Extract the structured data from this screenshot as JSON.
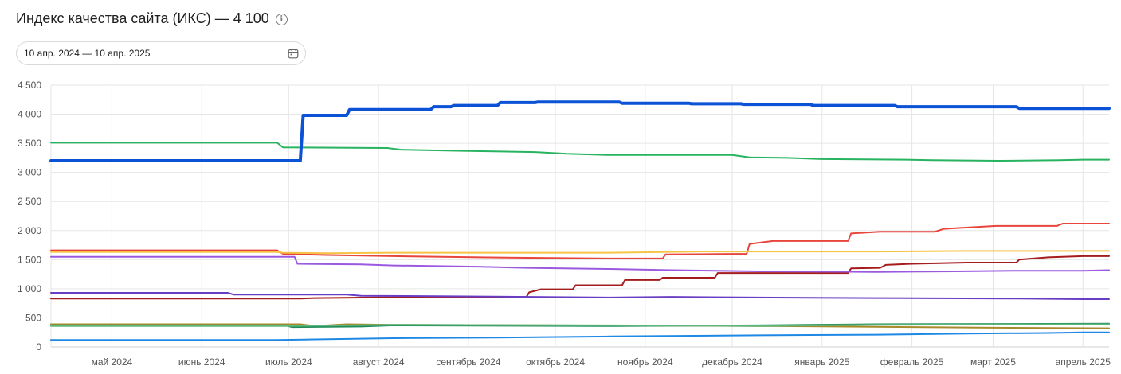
{
  "header": {
    "title": "Индекс качества сайта (ИКС) — 4 100",
    "info_icon": "info-icon"
  },
  "date_range": {
    "value": "10 апр. 2024 — 10 апр. 2025",
    "icon": "calendar-icon"
  },
  "chart_data": {
    "type": "line",
    "title": "",
    "xlabel": "",
    "ylabel": "",
    "xlim": [
      "2024-04-10",
      "2025-04-10"
    ],
    "ylim": [
      0,
      4500
    ],
    "yticks": [
      0,
      500,
      1000,
      1500,
      2000,
      2500,
      3000,
      3500,
      4000,
      4500
    ],
    "ytick_labels": [
      "0",
      "500",
      "1 000",
      "1 500",
      "2 000",
      "2 500",
      "3 000",
      "3 500",
      "4 000",
      "4 500"
    ],
    "xticks": [
      {
        "date": "2024-05-01",
        "label": "май 2024"
      },
      {
        "date": "2024-06-01",
        "label": "июнь 2024"
      },
      {
        "date": "2024-07-01",
        "label": "июль 2024"
      },
      {
        "date": "2024-08-01",
        "label": "август 2024"
      },
      {
        "date": "2024-09-01",
        "label": "сентябрь 2024"
      },
      {
        "date": "2024-10-01",
        "label": "октябрь 2024"
      },
      {
        "date": "2024-11-01",
        "label": "ноябрь 2024"
      },
      {
        "date": "2024-12-01",
        "label": "декабрь 2024"
      },
      {
        "date": "2025-01-01",
        "label": "январь 2025"
      },
      {
        "date": "2025-02-01",
        "label": "февраль 2025"
      },
      {
        "date": "2025-03-01",
        "label": "март 2025"
      },
      {
        "date": "2025-04-01",
        "label": "апрель 2025"
      }
    ],
    "grid": true,
    "legend": "none",
    "series": [
      {
        "color": "#0b52d6",
        "highlight": true,
        "points": [
          [
            "2024-04-10",
            3200
          ],
          [
            "2024-07-05",
            3200
          ],
          [
            "2024-07-06",
            3980
          ],
          [
            "2024-07-21",
            3980
          ],
          [
            "2024-07-22",
            4080
          ],
          [
            "2024-08-19",
            4080
          ],
          [
            "2024-08-20",
            4130
          ],
          [
            "2024-08-26",
            4130
          ],
          [
            "2024-08-27",
            4150
          ],
          [
            "2024-09-11",
            4150
          ],
          [
            "2024-09-12",
            4200
          ],
          [
            "2024-09-24",
            4200
          ],
          [
            "2024-09-25",
            4210
          ],
          [
            "2024-10-23",
            4210
          ],
          [
            "2024-10-24",
            4190
          ],
          [
            "2024-11-16",
            4190
          ],
          [
            "2024-11-17",
            4180
          ],
          [
            "2024-12-04",
            4180
          ],
          [
            "2024-12-05",
            4170
          ],
          [
            "2024-12-28",
            4170
          ],
          [
            "2024-12-29",
            4150
          ],
          [
            "2025-01-26",
            4150
          ],
          [
            "2025-01-27",
            4130
          ],
          [
            "2025-03-09",
            4130
          ],
          [
            "2025-03-10",
            4100
          ],
          [
            "2025-04-10",
            4100
          ]
        ]
      },
      {
        "color": "#27b35f",
        "points": [
          [
            "2024-04-10",
            3510
          ],
          [
            "2024-06-27",
            3510
          ],
          [
            "2024-06-29",
            3430
          ],
          [
            "2024-08-04",
            3420
          ],
          [
            "2024-08-09",
            3390
          ],
          [
            "2024-08-30",
            3370
          ],
          [
            "2024-09-24",
            3350
          ],
          [
            "2024-10-05",
            3320
          ],
          [
            "2024-10-19",
            3300
          ],
          [
            "2024-12-01",
            3300
          ],
          [
            "2024-12-07",
            3260
          ],
          [
            "2024-12-20",
            3250
          ],
          [
            "2025-01-01",
            3230
          ],
          [
            "2025-01-30",
            3220
          ],
          [
            "2025-02-08",
            3210
          ],
          [
            "2025-03-03",
            3200
          ],
          [
            "2025-03-24",
            3210
          ],
          [
            "2025-04-01",
            3220
          ],
          [
            "2025-04-10",
            3220
          ]
        ]
      },
      {
        "color": "#e8453c",
        "points": [
          [
            "2024-04-10",
            1660
          ],
          [
            "2024-06-27",
            1660
          ],
          [
            "2024-06-29",
            1600
          ],
          [
            "2024-07-14",
            1580
          ],
          [
            "2024-08-06",
            1560
          ],
          [
            "2024-09-05",
            1540
          ],
          [
            "2024-09-25",
            1530
          ],
          [
            "2024-10-20",
            1520
          ],
          [
            "2024-11-07",
            1520
          ],
          [
            "2024-11-08",
            1590
          ],
          [
            "2024-12-06",
            1600
          ],
          [
            "2024-12-07",
            1770
          ],
          [
            "2024-12-15",
            1820
          ],
          [
            "2025-01-10",
            1820
          ],
          [
            "2025-01-11",
            1950
          ],
          [
            "2025-01-21",
            1980
          ],
          [
            "2025-02-09",
            1980
          ],
          [
            "2025-02-12",
            2030
          ],
          [
            "2025-02-19",
            2050
          ],
          [
            "2025-03-02",
            2080
          ],
          [
            "2025-03-23",
            2080
          ],
          [
            "2025-03-25",
            2120
          ],
          [
            "2025-04-10",
            2120
          ]
        ]
      },
      {
        "color": "#f6c445",
        "points": [
          [
            "2024-04-10",
            1630
          ],
          [
            "2024-06-27",
            1630
          ],
          [
            "2024-06-29",
            1620
          ],
          [
            "2024-07-14",
            1610
          ],
          [
            "2024-08-06",
            1620
          ],
          [
            "2024-10-20",
            1620
          ],
          [
            "2024-11-20",
            1640
          ],
          [
            "2024-12-20",
            1640
          ],
          [
            "2025-01-20",
            1640
          ],
          [
            "2025-02-20",
            1650
          ],
          [
            "2025-04-10",
            1650
          ]
        ]
      },
      {
        "color": "#a51c1c",
        "points": [
          [
            "2024-04-10",
            830
          ],
          [
            "2024-07-05",
            830
          ],
          [
            "2024-07-10",
            840
          ],
          [
            "2024-07-30",
            850
          ],
          [
            "2024-09-10",
            860
          ],
          [
            "2024-09-21",
            860
          ],
          [
            "2024-09-22",
            940
          ],
          [
            "2024-09-26",
            990
          ],
          [
            "2024-10-07",
            990
          ],
          [
            "2024-10-08",
            1060
          ],
          [
            "2024-10-24",
            1060
          ],
          [
            "2024-10-25",
            1150
          ],
          [
            "2024-11-06",
            1150
          ],
          [
            "2024-11-07",
            1190
          ],
          [
            "2024-11-25",
            1190
          ],
          [
            "2024-11-26",
            1270
          ],
          [
            "2025-01-10",
            1270
          ],
          [
            "2025-01-11",
            1350
          ],
          [
            "2025-01-21",
            1360
          ],
          [
            "2025-01-23",
            1410
          ],
          [
            "2025-02-01",
            1430
          ],
          [
            "2025-02-20",
            1450
          ],
          [
            "2025-03-09",
            1450
          ],
          [
            "2025-03-10",
            1500
          ],
          [
            "2025-03-20",
            1540
          ],
          [
            "2025-04-01",
            1560
          ],
          [
            "2025-04-10",
            1560
          ]
        ]
      },
      {
        "color": "#9b59e0",
        "points": [
          [
            "2024-04-10",
            1550
          ],
          [
            "2024-07-03",
            1550
          ],
          [
            "2024-07-04",
            1430
          ],
          [
            "2024-07-26",
            1420
          ],
          [
            "2024-08-06",
            1400
          ],
          [
            "2024-09-04",
            1380
          ],
          [
            "2024-09-21",
            1360
          ],
          [
            "2024-10-20",
            1340
          ],
          [
            "2024-11-10",
            1320
          ],
          [
            "2024-12-10",
            1300
          ],
          [
            "2025-01-20",
            1290
          ],
          [
            "2025-02-16",
            1300
          ],
          [
            "2025-03-10",
            1310
          ],
          [
            "2025-04-01",
            1310
          ],
          [
            "2025-04-10",
            1320
          ]
        ]
      },
      {
        "color": "#6a3ec4",
        "points": [
          [
            "2024-04-10",
            930
          ],
          [
            "2024-06-10",
            930
          ],
          [
            "2024-06-12",
            900
          ],
          [
            "2024-07-21",
            900
          ],
          [
            "2024-07-26",
            880
          ],
          [
            "2024-08-26",
            870
          ],
          [
            "2024-10-20",
            850
          ],
          [
            "2024-11-10",
            860
          ],
          [
            "2024-12-10",
            850
          ],
          [
            "2025-01-20",
            840
          ],
          [
            "2025-03-10",
            830
          ],
          [
            "2025-04-01",
            820
          ],
          [
            "2025-04-10",
            820
          ]
        ]
      },
      {
        "color": "#a88a2a",
        "points": [
          [
            "2024-04-10",
            390
          ],
          [
            "2024-07-05",
            390
          ],
          [
            "2024-07-10",
            360
          ],
          [
            "2024-07-21",
            390
          ],
          [
            "2024-08-06",
            380
          ],
          [
            "2024-12-10",
            360
          ],
          [
            "2025-02-01",
            340
          ],
          [
            "2025-03-01",
            330
          ],
          [
            "2025-04-10",
            320
          ]
        ]
      },
      {
        "color": "#1f8a5a",
        "points": [
          [
            "2024-04-10",
            370
          ],
          [
            "2024-06-30",
            370
          ],
          [
            "2024-07-02",
            340
          ],
          [
            "2024-07-26",
            350
          ],
          [
            "2024-08-06",
            370
          ],
          [
            "2024-10-20",
            360
          ],
          [
            "2024-12-10",
            370
          ],
          [
            "2025-01-20",
            390
          ],
          [
            "2025-04-10",
            400
          ]
        ]
      },
      {
        "color": "#5bb77a",
        "points": [
          [
            "2024-04-10",
            360
          ],
          [
            "2024-06-30",
            360
          ],
          [
            "2024-08-06",
            380
          ],
          [
            "2024-10-20",
            370
          ],
          [
            "2024-12-10",
            360
          ],
          [
            "2025-01-20",
            380
          ],
          [
            "2025-04-10",
            390
          ]
        ]
      },
      {
        "color": "#1e88e5",
        "points": [
          [
            "2024-04-10",
            120
          ],
          [
            "2024-06-27",
            120
          ],
          [
            "2024-07-10",
            130
          ],
          [
            "2024-08-06",
            150
          ],
          [
            "2024-09-10",
            160
          ],
          [
            "2024-10-20",
            180
          ],
          [
            "2024-12-10",
            200
          ],
          [
            "2025-01-20",
            210
          ],
          [
            "2025-02-20",
            230
          ],
          [
            "2025-03-20",
            240
          ],
          [
            "2025-04-01",
            250
          ],
          [
            "2025-04-10",
            250
          ]
        ]
      }
    ]
  }
}
